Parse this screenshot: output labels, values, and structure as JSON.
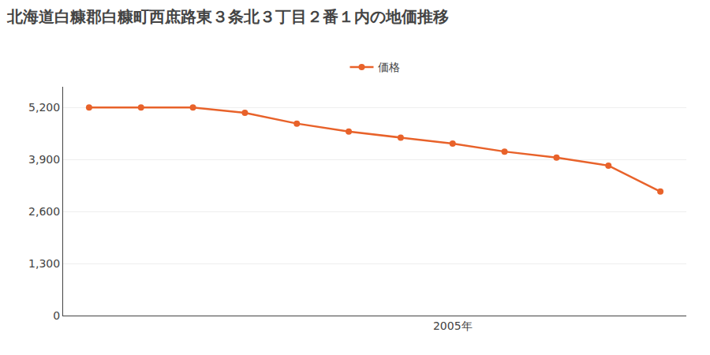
{
  "chart_data": {
    "type": "line",
    "title": "北海道白糠郡白糠町西庶路東３条北３丁目２番１内の地価推移",
    "x": [
      1998,
      1999,
      2000,
      2001,
      2002,
      2003,
      2004,
      2005,
      2006,
      2007,
      2008,
      2009
    ],
    "series": [
      {
        "name": "価格",
        "color": "#e8622a",
        "marker": "circle",
        "values": [
          5200,
          5200,
          5200,
          5070,
          4800,
          4600,
          4450,
          4300,
          4100,
          3950,
          3750,
          3100
        ]
      }
    ],
    "xlim": [
      1997.5,
      2009.5
    ],
    "xticks": [
      {
        "value": 2005,
        "label": "2005年"
      }
    ],
    "ylim": [
      0,
      5720
    ],
    "yticks": [
      0,
      {
        "value": 1300,
        "label": "1,300"
      },
      {
        "value": 2600,
        "label": "2,600"
      },
      {
        "value": 3900,
        "label": "3,900"
      },
      {
        "value": 5200,
        "label": "5,200"
      }
    ],
    "grid": "y",
    "legend": "top"
  }
}
